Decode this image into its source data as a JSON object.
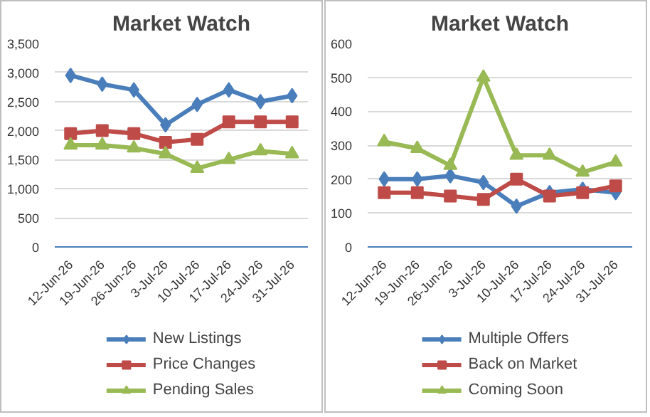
{
  "chart_data": [
    {
      "type": "line",
      "title": "Market Watch",
      "categories": [
        "12-Jun-26",
        "19-Jun-26",
        "26-Jun-26",
        "3-Jul-26",
        "10-Jul-26",
        "17-Jul-26",
        "24-Jul-26",
        "31-Jul-26"
      ],
      "series": [
        {
          "name": "New Listings",
          "color": "#4a7ebb",
          "marker": "diamond",
          "values": [
            2950,
            2800,
            2700,
            2100,
            2450,
            2700,
            2500,
            2600
          ]
        },
        {
          "name": "Price Changes",
          "color": "#be4b48",
          "marker": "square",
          "values": [
            1950,
            2000,
            1950,
            1800,
            1850,
            2150,
            2150,
            2150
          ]
        },
        {
          "name": "Pending Sales",
          "color": "#98b954",
          "marker": "triangle",
          "values": [
            1750,
            1750,
            1700,
            1600,
            1350,
            1500,
            1650,
            1600
          ]
        }
      ],
      "ylim": [
        0,
        3500
      ],
      "yticks": [
        {
          "value": 0,
          "label": "0"
        },
        {
          "value": 500,
          "label": "500"
        },
        {
          "value": 1000,
          "label": "1,000"
        },
        {
          "value": 1500,
          "label": "1,500"
        },
        {
          "value": 2000,
          "label": "2,000"
        },
        {
          "value": 2500,
          "label": "2,500"
        },
        {
          "value": 3000,
          "label": "3,000"
        },
        {
          "value": 3500,
          "label": "3,500"
        }
      ],
      "grid": "y",
      "legend": "bottom"
    },
    {
      "type": "line",
      "title": "Market Watch",
      "categories": [
        "12-Jun-26",
        "19-Jun-26",
        "26-Jun-26",
        "3-Jul-26",
        "10-Jul-26",
        "17-Jul-26",
        "24-Jul-26",
        "31-Jul-26"
      ],
      "series": [
        {
          "name": "Multiple Offers",
          "color": "#4a7ebb",
          "marker": "diamond",
          "values": [
            200,
            200,
            210,
            190,
            120,
            160,
            170,
            160
          ]
        },
        {
          "name": "Back on Market",
          "color": "#be4b48",
          "marker": "square",
          "values": [
            160,
            160,
            150,
            140,
            200,
            150,
            160,
            180
          ]
        },
        {
          "name": "Coming Soon",
          "color": "#98b954",
          "marker": "triangle",
          "values": [
            310,
            290,
            240,
            500,
            270,
            270,
            220,
            250
          ]
        }
      ],
      "ylim": [
        0,
        600
      ],
      "yticks": [
        0,
        100,
        200,
        300,
        400,
        500,
        600
      ],
      "grid": "y",
      "legend": "bottom"
    }
  ]
}
